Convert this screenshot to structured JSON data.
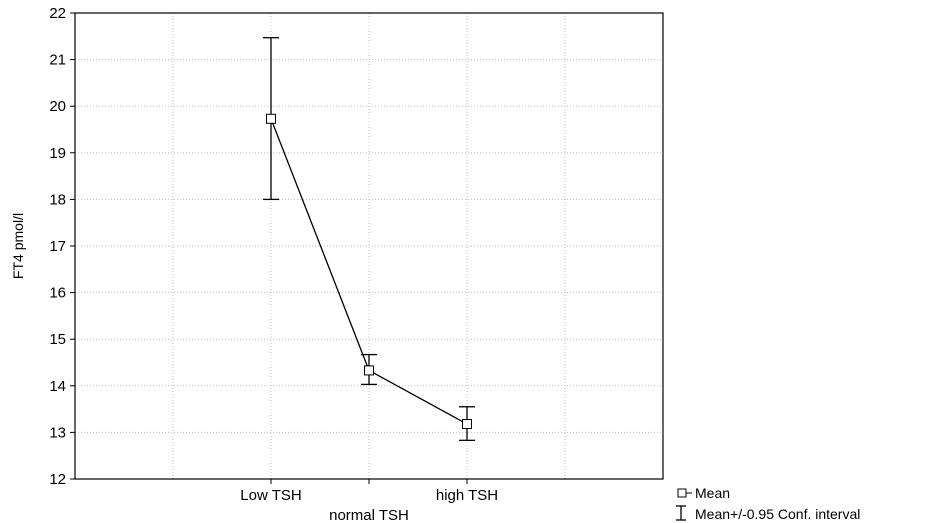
{
  "chart_data": {
    "type": "line",
    "title": "",
    "xlabel": "",
    "ylabel": "FT4 pmol/l",
    "ylim": [
      12,
      22
    ],
    "yticks": [
      12,
      13,
      14,
      15,
      16,
      17,
      18,
      19,
      20,
      21,
      22
    ],
    "categories": [
      "Low TSH",
      "normal TSH",
      "high TSH"
    ],
    "series": [
      {
        "name": "Mean",
        "values": [
          19.73,
          14.33,
          13.18
        ],
        "ci_low": [
          18.0,
          14.03,
          12.83
        ],
        "ci_high": [
          21.47,
          14.67,
          13.55
        ]
      }
    ],
    "legend": {
      "position": "bottom-right",
      "entries": [
        "Mean",
        "Mean+/-0.95 Conf. interval"
      ]
    },
    "grid": true,
    "colors": {
      "line": "#000000",
      "grid": "#bfbfbf",
      "marker_fill": "#ffffff"
    }
  }
}
